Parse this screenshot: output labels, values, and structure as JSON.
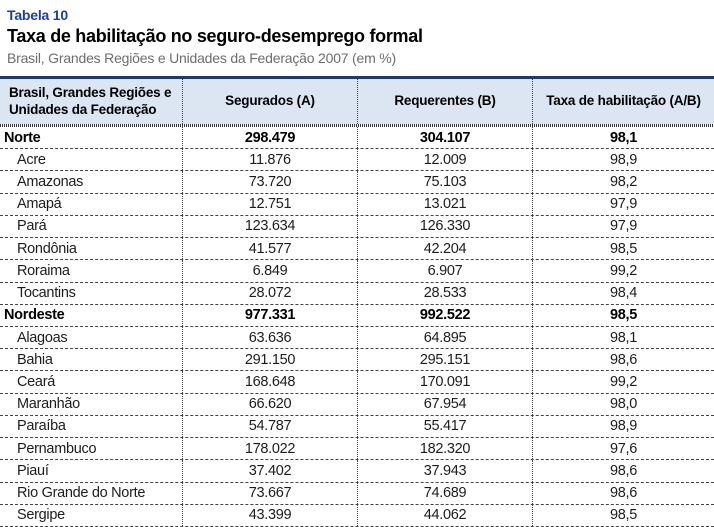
{
  "title_block": {
    "table_label": "Tabela 10",
    "title": "Taxa de habilitação no seguro-desemprego formal",
    "subtitle": "Brasil, Grandes Regiões e Unidades da Federação 2007 (em %)"
  },
  "table": {
    "columns": [
      "Brasil, Grandes Regiões e\nUnidades da Federação",
      "Segurados (A)",
      "Requerentes (B)",
      "Taxa de habilitação (A/B)"
    ],
    "rows": [
      {
        "label": "Norte",
        "segurados": "298.479",
        "requerentes": "304.107",
        "taxa": "98,1",
        "bold": true
      },
      {
        "label": "Acre",
        "segurados": "11.876",
        "requerentes": "12.009",
        "taxa": "98,9",
        "bold": false
      },
      {
        "label": "Amazonas",
        "segurados": "73.720",
        "requerentes": "75.103",
        "taxa": "98,2",
        "bold": false
      },
      {
        "label": "Amapá",
        "segurados": "12.751",
        "requerentes": "13.021",
        "taxa": "97,9",
        "bold": false
      },
      {
        "label": "Pará",
        "segurados": "123.634",
        "requerentes": "126.330",
        "taxa": "97,9",
        "bold": false
      },
      {
        "label": "Rondônia",
        "segurados": "41.577",
        "requerentes": "42.204",
        "taxa": "98,5",
        "bold": false
      },
      {
        "label": "Roraima",
        "segurados": "6.849",
        "requerentes": "6.907",
        "taxa": "99,2",
        "bold": false
      },
      {
        "label": "Tocantins",
        "segurados": "28.072",
        "requerentes": "28.533",
        "taxa": "98,4",
        "bold": false
      },
      {
        "label": "Nordeste",
        "segurados": "977.331",
        "requerentes": "992.522",
        "taxa": "98,5",
        "bold": true
      },
      {
        "label": "Alagoas",
        "segurados": "63.636",
        "requerentes": "64.895",
        "taxa": "98,1",
        "bold": false
      },
      {
        "label": "Bahia",
        "segurados": "291.150",
        "requerentes": "295.151",
        "taxa": "98,6",
        "bold": false
      },
      {
        "label": "Ceará",
        "segurados": "168.648",
        "requerentes": "170.091",
        "taxa": "99,2",
        "bold": false
      },
      {
        "label": "Maranhão",
        "segurados": "66.620",
        "requerentes": "67.954",
        "taxa": "98,0",
        "bold": false
      },
      {
        "label": "Paraíba",
        "segurados": "54.787",
        "requerentes": "55.417",
        "taxa": "98,9",
        "bold": false
      },
      {
        "label": "Pernambuco",
        "segurados": "178.022",
        "requerentes": "182.320",
        "taxa": "97,6",
        "bold": false
      },
      {
        "label": "Piauí",
        "segurados": "37.402",
        "requerentes": "37.943",
        "taxa": "98,6",
        "bold": false
      },
      {
        "label": "Rio Grande do Norte",
        "segurados": "73.667",
        "requerentes": "74.689",
        "taxa": "98,6",
        "bold": false
      },
      {
        "label": "Sergipe",
        "segurados": "43.399",
        "requerentes": "44.062",
        "taxa": "98,5",
        "bold": false
      }
    ]
  },
  "colors": {
    "accent_blue": "#1c3f9e",
    "navy_bar": "#1b3a73",
    "header_bg": "#dce6f2",
    "subtitle_gray": "#6d6d6d"
  }
}
